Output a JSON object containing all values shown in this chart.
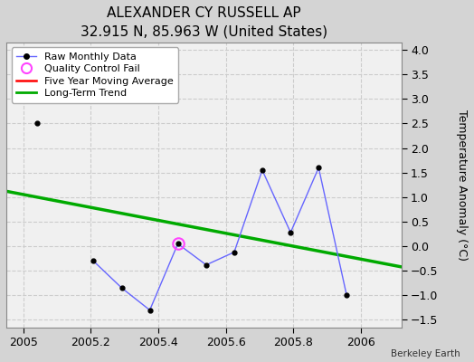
{
  "title": "ALEXANDER CY RUSSELL AP",
  "subtitle": "32.915 N, 85.963 W (United States)",
  "credit": "Berkeley Earth",
  "ylabel": "Temperature Anomaly (°C)",
  "xlim": [
    2004.95,
    2006.12
  ],
  "ylim": [
    -1.65,
    4.15
  ],
  "yticks": [
    -1.5,
    -1.0,
    -0.5,
    0.0,
    0.5,
    1.0,
    1.5,
    2.0,
    2.5,
    3.0,
    3.5,
    4.0
  ],
  "xticks": [
    2005.0,
    2005.2,
    2005.4,
    2005.6,
    2005.8,
    2006.0
  ],
  "raw_x": [
    2005.042,
    2005.125,
    2005.208,
    2005.292,
    2005.375,
    2005.458,
    2005.542,
    2005.625,
    2005.708,
    2005.792,
    2005.875,
    2005.958
  ],
  "raw_y": [
    2.5,
    null,
    -0.3,
    -0.85,
    -1.3,
    0.05,
    -0.38,
    -0.12,
    1.55,
    0.28,
    1.6,
    -1.0
  ],
  "qc_fail_x": [
    2005.458
  ],
  "qc_fail_y": [
    0.05
  ],
  "trend_x": [
    2004.95,
    2006.12
  ],
  "trend_y": [
    1.12,
    -0.42
  ],
  "raw_line_color": "#6666ff",
  "raw_marker_color": "#000000",
  "trend_color": "#00aa00",
  "moving_avg_color": "#ff0000",
  "qc_color": "#ff44ff",
  "fig_bg_color": "#d4d4d4",
  "plot_bg_color": "#f0f0f0",
  "grid_color": "#cccccc",
  "legend_bg": "#ffffff",
  "title_fontsize": 11,
  "subtitle_fontsize": 9,
  "tick_fontsize": 9,
  "legend_fontsize": 8
}
